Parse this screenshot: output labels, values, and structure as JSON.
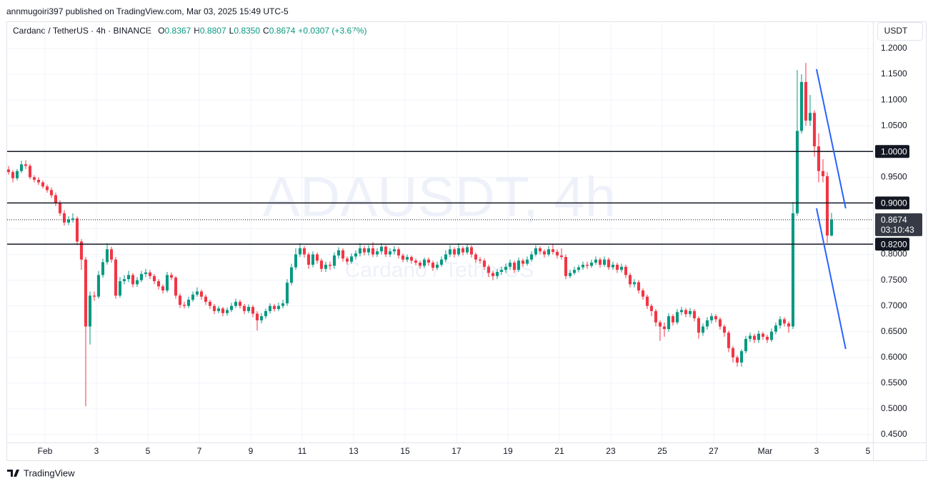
{
  "chart_data": {
    "type": "candlestick",
    "publisher": "annmugoiri397 published on TradingView.com, Mar 03, 2025 15:49 UTC-5",
    "title": "Cardano / TetherUS · 4h · BINANCE",
    "ohlc_labels": [
      {
        "key": "O",
        "value": "0.8367"
      },
      {
        "key": "H",
        "value": "0.8807"
      },
      {
        "key": "L",
        "value": "0.8350"
      },
      {
        "key": "C",
        "value": "0.8674"
      }
    ],
    "change": "+0.0307 (+3.67%)",
    "currency": "USDT",
    "watermark": "ADAUSDT, 4h",
    "watermark_sub": "Cardano / TetherUS",
    "brand": "TradingView",
    "up_color": "#089981",
    "down_color": "#f23645",
    "open": [
      0.965,
      0.96,
      0.948,
      0.962,
      0.975,
      0.972,
      0.95,
      0.945,
      0.94,
      0.932,
      0.925,
      0.915,
      0.9,
      0.88,
      0.862,
      0.868,
      0.87,
      0.825,
      0.79,
      0.66,
      0.72,
      0.718,
      0.76,
      0.785,
      0.81,
      0.79,
      0.72,
      0.748,
      0.752,
      0.76,
      0.742,
      0.75,
      0.762,
      0.765,
      0.758,
      0.748,
      0.738,
      0.73,
      0.76,
      0.755,
      0.72,
      0.702,
      0.7,
      0.712,
      0.722,
      0.728,
      0.718,
      0.708,
      0.7,
      0.69,
      0.695,
      0.686,
      0.692,
      0.7,
      0.708,
      0.7,
      0.69,
      0.698,
      0.685,
      0.672,
      0.68,
      0.69,
      0.7,
      0.694,
      0.7,
      0.705,
      0.745,
      0.775,
      0.8,
      0.812,
      0.8,
      0.78,
      0.8,
      0.788,
      0.772,
      0.78,
      0.778,
      0.798,
      0.808,
      0.792,
      0.786,
      0.796,
      0.802,
      0.812,
      0.804,
      0.812,
      0.8,
      0.806,
      0.815,
      0.8,
      0.806,
      0.81,
      0.798,
      0.79,
      0.795,
      0.788,
      0.784,
      0.778,
      0.79,
      0.784,
      0.774,
      0.78,
      0.79,
      0.8,
      0.81,
      0.8,
      0.812,
      0.804,
      0.814,
      0.8,
      0.79,
      0.788,
      0.776,
      0.764,
      0.758,
      0.766,
      0.77,
      0.776,
      0.784,
      0.77,
      0.788,
      0.782,
      0.79,
      0.8,
      0.812,
      0.806,
      0.8,
      0.81,
      0.805,
      0.798,
      0.795,
      0.758,
      0.764,
      0.77,
      0.775,
      0.78,
      0.778,
      0.784,
      0.79,
      0.78,
      0.79,
      0.775,
      0.78,
      0.77,
      0.776,
      0.76,
      0.742,
      0.746,
      0.73,
      0.718,
      0.7,
      0.69,
      0.668,
      0.66,
      0.655,
      0.68,
      0.668,
      0.688,
      0.692,
      0.684,
      0.69,
      0.676,
      0.648,
      0.66,
      0.672,
      0.68,
      0.674,
      0.66,
      0.648,
      0.618,
      0.6,
      0.59,
      0.612,
      0.636,
      0.642,
      0.634,
      0.646,
      0.64,
      0.634,
      0.65,
      0.662,
      0.674,
      0.666,
      0.66,
      0.88,
      1.04,
      1.135,
      1.06,
      1.075,
      1.01,
      0.962,
      0.952,
      0.8367
    ],
    "high": [
      0.972,
      0.964,
      0.966,
      0.982,
      0.983,
      0.976,
      0.954,
      0.95,
      0.944,
      0.936,
      0.93,
      0.92,
      0.905,
      0.886,
      0.874,
      0.88,
      0.874,
      0.83,
      0.795,
      0.728,
      0.728,
      0.768,
      0.792,
      0.822,
      0.815,
      0.795,
      0.756,
      0.76,
      0.768,
      0.764,
      0.756,
      0.768,
      0.772,
      0.77,
      0.762,
      0.752,
      0.742,
      0.766,
      0.765,
      0.758,
      0.724,
      0.708,
      0.718,
      0.728,
      0.736,
      0.732,
      0.722,
      0.712,
      0.704,
      0.7,
      0.698,
      0.697,
      0.706,
      0.714,
      0.712,
      0.704,
      0.703,
      0.702,
      0.69,
      0.686,
      0.695,
      0.705,
      0.704,
      0.706,
      0.712,
      0.752,
      0.782,
      0.812,
      0.822,
      0.816,
      0.804,
      0.806,
      0.804,
      0.792,
      0.786,
      0.786,
      0.804,
      0.814,
      0.812,
      0.796,
      0.802,
      0.808,
      0.822,
      0.816,
      0.818,
      0.824,
      0.812,
      0.822,
      0.818,
      0.812,
      0.816,
      0.814,
      0.802,
      0.8,
      0.798,
      0.792,
      0.788,
      0.794,
      0.794,
      0.788,
      0.786,
      0.796,
      0.808,
      0.818,
      0.814,
      0.822,
      0.816,
      0.82,
      0.818,
      0.804,
      0.795,
      0.792,
      0.78,
      0.768,
      0.772,
      0.776,
      0.782,
      0.79,
      0.788,
      0.794,
      0.792,
      0.796,
      0.806,
      0.818,
      0.816,
      0.81,
      0.816,
      0.82,
      0.81,
      0.812,
      0.8,
      0.77,
      0.776,
      0.78,
      0.786,
      0.786,
      0.79,
      0.796,
      0.794,
      0.796,
      0.794,
      0.786,
      0.784,
      0.782,
      0.78,
      0.764,
      0.752,
      0.75,
      0.734,
      0.722,
      0.704,
      0.694,
      0.672,
      0.668,
      0.686,
      0.684,
      0.694,
      0.698,
      0.696,
      0.696,
      0.694,
      0.68,
      0.666,
      0.678,
      0.686,
      0.684,
      0.678,
      0.664,
      0.652,
      0.622,
      0.604,
      0.616,
      0.642,
      0.648,
      0.646,
      0.652,
      0.65,
      0.644,
      0.656,
      0.668,
      0.68,
      0.678,
      0.67,
      0.902,
      1.158,
      1.15,
      1.172,
      1.11,
      1.08,
      1.035,
      0.985,
      0.96,
      0.8807
    ],
    "low": [
      0.955,
      0.94,
      0.944,
      0.958,
      0.966,
      0.946,
      0.94,
      0.935,
      0.928,
      0.92,
      0.91,
      0.894,
      0.875,
      0.856,
      0.857,
      0.862,
      0.818,
      0.77,
      0.505,
      0.625,
      0.71,
      0.714,
      0.755,
      0.78,
      0.784,
      0.714,
      0.716,
      0.742,
      0.746,
      0.736,
      0.737,
      0.746,
      0.756,
      0.752,
      0.742,
      0.732,
      0.724,
      0.726,
      0.75,
      0.714,
      0.696,
      0.695,
      0.696,
      0.708,
      0.718,
      0.712,
      0.702,
      0.694,
      0.684,
      0.686,
      0.68,
      0.681,
      0.688,
      0.696,
      0.695,
      0.684,
      0.686,
      0.678,
      0.652,
      0.666,
      0.675,
      0.685,
      0.689,
      0.69,
      0.695,
      0.7,
      0.74,
      0.77,
      0.795,
      0.794,
      0.772,
      0.775,
      0.782,
      0.766,
      0.766,
      0.77,
      0.772,
      0.792,
      0.786,
      0.78,
      0.782,
      0.79,
      0.796,
      0.798,
      0.798,
      0.795,
      0.795,
      0.8,
      0.795,
      0.795,
      0.8,
      0.792,
      0.785,
      0.785,
      0.782,
      0.779,
      0.772,
      0.774,
      0.778,
      0.768,
      0.77,
      0.776,
      0.785,
      0.795,
      0.794,
      0.796,
      0.798,
      0.8,
      0.794,
      0.784,
      0.782,
      0.77,
      0.756,
      0.75,
      0.752,
      0.76,
      0.764,
      0.77,
      0.764,
      0.766,
      0.776,
      0.778,
      0.786,
      0.796,
      0.8,
      0.794,
      0.796,
      0.8,
      0.792,
      0.79,
      0.752,
      0.754,
      0.76,
      0.765,
      0.77,
      0.772,
      0.774,
      0.78,
      0.774,
      0.776,
      0.77,
      0.77,
      0.764,
      0.765,
      0.754,
      0.736,
      0.736,
      0.724,
      0.712,
      0.694,
      0.68,
      0.66,
      0.632,
      0.64,
      0.65,
      0.662,
      0.664,
      0.682,
      0.678,
      0.678,
      0.67,
      0.636,
      0.642,
      0.654,
      0.666,
      0.668,
      0.654,
      0.64,
      0.61,
      0.59,
      0.582,
      0.582,
      0.608,
      0.63,
      0.628,
      0.628,
      0.634,
      0.628,
      0.63,
      0.645,
      0.656,
      0.66,
      0.648,
      0.655,
      0.875,
      1.035,
      1.05,
      1.05,
      0.99,
      0.94,
      0.94,
      0.822,
      0.835
    ],
    "close": [
      0.96,
      0.948,
      0.962,
      0.975,
      0.972,
      0.95,
      0.945,
      0.94,
      0.932,
      0.925,
      0.915,
      0.9,
      0.88,
      0.862,
      0.868,
      0.87,
      0.825,
      0.79,
      0.66,
      0.72,
      0.718,
      0.76,
      0.785,
      0.81,
      0.79,
      0.72,
      0.748,
      0.752,
      0.76,
      0.742,
      0.75,
      0.762,
      0.765,
      0.758,
      0.748,
      0.738,
      0.73,
      0.76,
      0.755,
      0.72,
      0.702,
      0.7,
      0.712,
      0.722,
      0.728,
      0.718,
      0.708,
      0.7,
      0.69,
      0.695,
      0.686,
      0.692,
      0.7,
      0.708,
      0.7,
      0.69,
      0.698,
      0.685,
      0.672,
      0.68,
      0.69,
      0.7,
      0.694,
      0.7,
      0.705,
      0.745,
      0.775,
      0.8,
      0.812,
      0.8,
      0.78,
      0.8,
      0.788,
      0.772,
      0.78,
      0.778,
      0.798,
      0.808,
      0.792,
      0.786,
      0.796,
      0.802,
      0.812,
      0.804,
      0.812,
      0.8,
      0.806,
      0.815,
      0.8,
      0.806,
      0.81,
      0.798,
      0.79,
      0.795,
      0.788,
      0.784,
      0.778,
      0.79,
      0.784,
      0.774,
      0.78,
      0.79,
      0.8,
      0.81,
      0.8,
      0.812,
      0.804,
      0.814,
      0.8,
      0.79,
      0.788,
      0.776,
      0.764,
      0.758,
      0.766,
      0.77,
      0.776,
      0.784,
      0.77,
      0.788,
      0.782,
      0.79,
      0.8,
      0.812,
      0.806,
      0.8,
      0.81,
      0.805,
      0.798,
      0.795,
      0.758,
      0.764,
      0.77,
      0.775,
      0.78,
      0.778,
      0.784,
      0.79,
      0.78,
      0.79,
      0.775,
      0.78,
      0.77,
      0.776,
      0.76,
      0.742,
      0.746,
      0.73,
      0.718,
      0.7,
      0.69,
      0.668,
      0.66,
      0.655,
      0.68,
      0.668,
      0.688,
      0.692,
      0.684,
      0.69,
      0.676,
      0.648,
      0.66,
      0.672,
      0.68,
      0.674,
      0.66,
      0.648,
      0.618,
      0.6,
      0.59,
      0.612,
      0.636,
      0.642,
      0.634,
      0.646,
      0.64,
      0.634,
      0.65,
      0.662,
      0.674,
      0.666,
      0.66,
      0.88,
      1.04,
      1.135,
      1.06,
      1.075,
      1.01,
      0.962,
      0.952,
      0.8367,
      0.8674
    ],
    "xlim": [
      -0.33,
      201.67
    ],
    "xticks": [
      {
        "value": 8.5,
        "label": "Feb"
      },
      {
        "value": 20.5,
        "label": "3"
      },
      {
        "value": 32.5,
        "label": "5"
      },
      {
        "value": 44.5,
        "label": "7"
      },
      {
        "value": 56.5,
        "label": "9"
      },
      {
        "value": 68.5,
        "label": "11"
      },
      {
        "value": 80.5,
        "label": "13"
      },
      {
        "value": 92.5,
        "label": "15"
      },
      {
        "value": 104.5,
        "label": "17"
      },
      {
        "value": 116.5,
        "label": "19"
      },
      {
        "value": 128.5,
        "label": "21"
      },
      {
        "value": 140.5,
        "label": "23"
      },
      {
        "value": 152.5,
        "label": "25"
      },
      {
        "value": 164.5,
        "label": "27"
      },
      {
        "value": 176.5,
        "label": "Mar"
      },
      {
        "value": 188.5,
        "label": "3"
      },
      {
        "value": 200.5,
        "label": "5"
      }
    ],
    "ylim": [
      0.4347,
      1.2527
    ],
    "yticks": [
      {
        "value": 1.2,
        "label": "1.2000"
      },
      {
        "value": 1.15,
        "label": "1.1500"
      },
      {
        "value": 1.1,
        "label": "1.1000"
      },
      {
        "value": 1.05,
        "label": "1.0500"
      },
      {
        "value": 1.0,
        "label": "1.0000"
      },
      {
        "value": 0.95,
        "label": "0.9500"
      },
      {
        "value": 0.9,
        "label": "0.9000"
      },
      {
        "value": 0.85,
        "label": "0.8500"
      },
      {
        "value": 0.8,
        "label": "0.8000"
      },
      {
        "value": 0.75,
        "label": "0.7500"
      },
      {
        "value": 0.7,
        "label": "0.7000"
      },
      {
        "value": 0.65,
        "label": "0.6500"
      },
      {
        "value": 0.6,
        "label": "0.6000"
      },
      {
        "value": 0.55,
        "label": "0.5500"
      },
      {
        "value": 0.5,
        "label": "0.5000"
      },
      {
        "value": 0.45,
        "label": "0.4500"
      }
    ],
    "grid": true,
    "levels": [
      {
        "value": 1.0,
        "label": "1.0000"
      },
      {
        "value": 0.9,
        "label": "0.9000"
      },
      {
        "value": 0.82,
        "label": "0.8200"
      }
    ],
    "last_price": {
      "value": 0.8674,
      "label": "0.8674",
      "countdown": "03:10:43"
    },
    "trendlines": [
      {
        "color": "#2962ff",
        "x": [
          188.5,
          195.3
        ],
        "y": [
          1.16,
          0.8895
        ]
      },
      {
        "color": "#2962ff",
        "x": [
          188.5,
          195.3
        ],
        "y": [
          0.8895,
          0.6163
        ]
      }
    ]
  }
}
